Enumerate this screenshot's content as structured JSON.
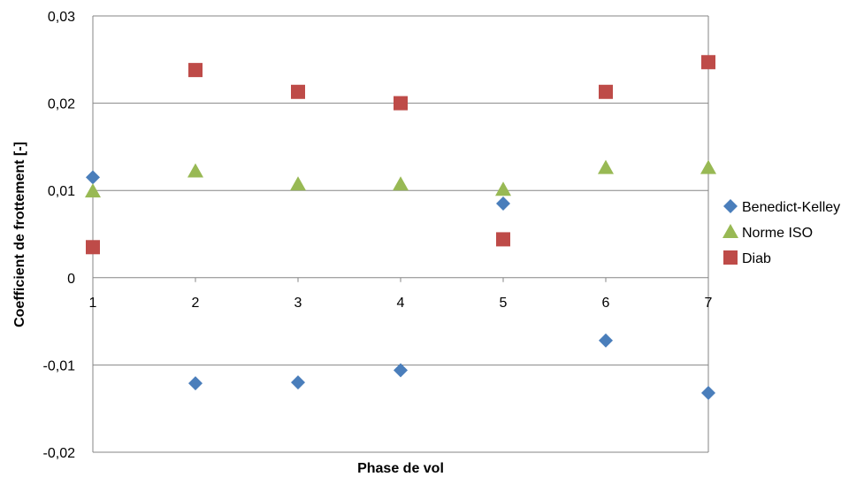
{
  "chart_data": {
    "type": "scatter",
    "title": "",
    "xlabel": "Phase de vol",
    "ylabel": "Coefficient de frottement [-]",
    "x": [
      1,
      2,
      3,
      4,
      5,
      6,
      7
    ],
    "xlim": [
      1,
      7
    ],
    "ylim": [
      -0.02,
      0.03
    ],
    "x_ticks": [
      "1",
      "2",
      "3",
      "4",
      "5",
      "6",
      "7"
    ],
    "y_ticks": [
      {
        "value": 0.03,
        "label": "0,03"
      },
      {
        "value": 0.02,
        "label": "0,02"
      },
      {
        "value": 0.01,
        "label": "0,01"
      },
      {
        "value": 0,
        "label": "0"
      },
      {
        "value": -0.01,
        "label": "-0,01"
      },
      {
        "value": -0.02,
        "label": "-0,02"
      }
    ],
    "grid": true,
    "legend": "right",
    "series": [
      {
        "name": "Benedict-Kelley",
        "marker": "diamond",
        "color": "#4a7ebb",
        "values": [
          0.0115,
          -0.0121,
          -0.012,
          -0.0106,
          0.0085,
          -0.0072,
          -0.0132
        ]
      },
      {
        "name": "Norme ISO",
        "marker": "triangle",
        "color": "#98b954",
        "values": [
          0.0099,
          0.0122,
          0.0107,
          0.0107,
          0.0101,
          0.0126,
          0.0126
        ]
      },
      {
        "name": "Diab",
        "marker": "square",
        "color": "#be4b48",
        "values": [
          0.0035,
          0.0238,
          0.0213,
          0.02,
          0.0044,
          0.0213,
          0.0247
        ]
      }
    ]
  }
}
